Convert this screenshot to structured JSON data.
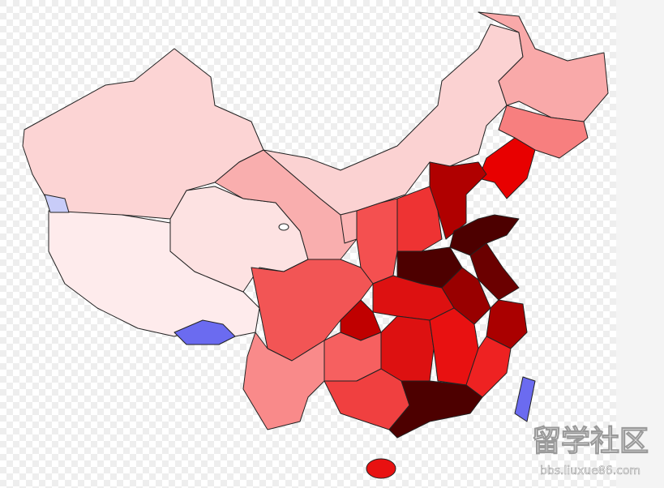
{
  "watermark": {
    "title": "留学社区",
    "url": "bbs.liuxue86.com"
  }
}
